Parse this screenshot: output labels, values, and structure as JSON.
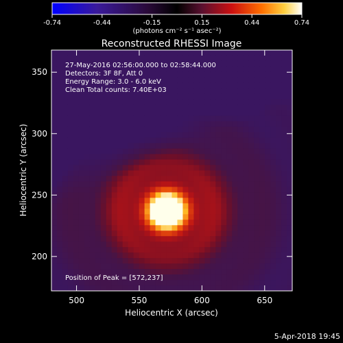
{
  "chart_data": {
    "type": "heatmap",
    "title": "Reconstructed RHESSI Image",
    "xlabel": "Heliocentric X (arcsec)",
    "ylabel": "Heliocentric Y (arcsec)",
    "xlim": [
      480,
      672
    ],
    "ylim": [
      172,
      368
    ],
    "x_ticks": [
      500,
      550,
      600,
      650
    ],
    "y_ticks": [
      200,
      250,
      300,
      350
    ],
    "colorbar": {
      "ticks": [
        "-0.74",
        "-0.44",
        "-0.15",
        "0.15",
        "0.44",
        "0.74"
      ],
      "range": [
        -0.74,
        0.74
      ],
      "units_label": "(photons cm⁻² s⁻¹ asec⁻²)",
      "colormap": [
        "#0000ff",
        "#3a1a9a",
        "#2a0a3a",
        "#000000",
        "#5a1030",
        "#cc1010",
        "#ff7000",
        "#ffd040",
        "#ffffff"
      ]
    },
    "annotations": [
      "27-May-2016 02:56:00.000 to 02:58:44.000",
      "Detectors: 3F 8F, Att 0",
      "Energy Range: 3.0 - 6.0 keV",
      "Clean     Total counts: 7.40E+03"
    ],
    "peak_label": "Position of Peak = [572,237]",
    "peak": {
      "x": 572,
      "y": 237
    }
  },
  "footer": {
    "timestamp": "5-Apr-2018 19:45"
  }
}
